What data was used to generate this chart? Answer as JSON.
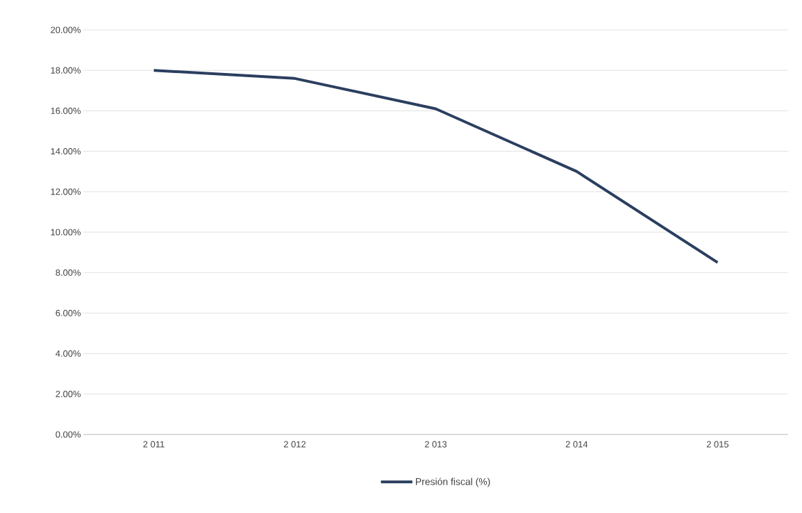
{
  "chart_data": {
    "type": "line",
    "categories": [
      "2 011",
      "2 012",
      "2 013",
      "2 014",
      "2 015"
    ],
    "series": [
      {
        "name": "Presión fiscal (%)",
        "color": "#2b3f5f",
        "values": [
          18.0,
          17.6,
          16.1,
          13.0,
          8.5
        ]
      }
    ],
    "ylim": [
      0,
      20
    ],
    "yticks": [
      {
        "value": 0,
        "label": "0.00%"
      },
      {
        "value": 2,
        "label": "2.00%"
      },
      {
        "value": 4,
        "label": "4.00%"
      },
      {
        "value": 6,
        "label": "6.00%"
      },
      {
        "value": 8,
        "label": "8.00%"
      },
      {
        "value": 10,
        "label": "10.00%"
      },
      {
        "value": 12,
        "label": "12.00%"
      },
      {
        "value": 14,
        "label": "14.00%"
      },
      {
        "value": 16,
        "label": "16.00%"
      },
      {
        "value": 18,
        "label": "18.00%"
      },
      {
        "value": 20,
        "label": "20.00%"
      }
    ],
    "grid": "y",
    "legend": "bottom"
  }
}
